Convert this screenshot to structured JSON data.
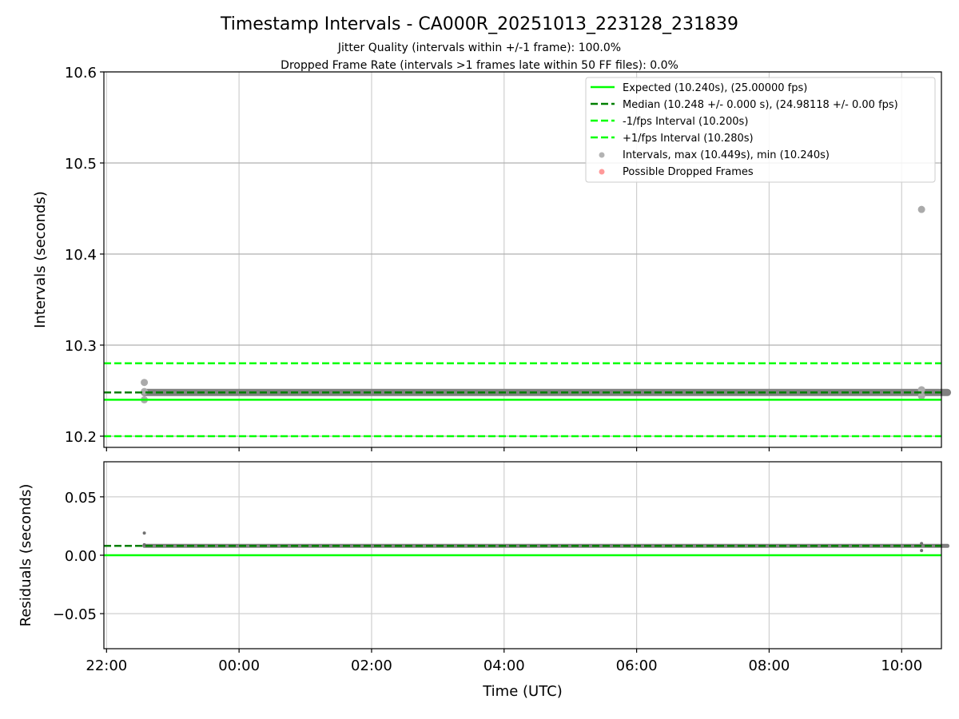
{
  "chart_data": [
    {
      "type": "scatter",
      "title": "Timestamp Intervals - CA000R_20251013_223128_231839",
      "subtitle_lines": [
        "Jitter Quality (intervals within +/-1 frame): 100.0%",
        "Dropped Frame Rate (intervals >1 frames late within 50 FF files): 0.0%"
      ],
      "ylabel": "Intervals (seconds)",
      "ylim": [
        10.1877,
        10.6
      ],
      "yticks": [
        10.2,
        10.3,
        10.4,
        10.5,
        10.6
      ],
      "ytick_labels": [
        "10.2",
        "10.3",
        "10.4",
        "10.5",
        "10.6"
      ],
      "grid": true,
      "hlines": [
        {
          "name": "Expected (10.240s), (25.00000 fps)",
          "y": 10.24,
          "color": "#00ff00",
          "style": "solid"
        },
        {
          "name": "Median (10.248 +/- 0.000 s), (24.98118 +/- 0.00 fps)",
          "y": 10.248,
          "color": "#007f00",
          "style": "dashed"
        },
        {
          "name": "-1/fps Interval (10.200s)",
          "y": 10.2,
          "color": "#00ff00",
          "style": "dashed"
        },
        {
          "name": "+1/fps Interval (10.280s)",
          "y": 10.28,
          "color": "#00ff00",
          "style": "dashed"
        }
      ],
      "scatter_series": [
        {
          "name": "Intervals, max (10.449s), min (10.240s)",
          "color": "#808080",
          "band": {
            "x_start_h": 22.57,
            "x_end_h": 34.45,
            "y": 10.248
          },
          "outliers": [
            [
              22.57,
              10.259
            ],
            [
              22.57,
              10.24
            ],
            [
              22.57,
              10.249
            ],
            [
              34.3,
              10.449
            ],
            [
              34.3,
              10.251
            ],
            [
              34.3,
              10.244
            ]
          ]
        },
        {
          "name": "Possible Dropped Frames",
          "color": "#ff5555",
          "points": []
        }
      ],
      "legend": "top-right"
    },
    {
      "type": "scatter",
      "ylabel": "Residuals (seconds)",
      "xlabel": "Time (UTC)",
      "ylim": [
        -0.08,
        0.08
      ],
      "yticks": [
        -0.05,
        0.0,
        0.05
      ],
      "ytick_labels": [
        "−0.05",
        "0.00",
        "0.05"
      ],
      "xlim_h": [
        21.96,
        34.6
      ],
      "xticks_h": [
        22,
        24,
        26,
        28,
        30,
        32,
        34
      ],
      "xtick_labels": [
        "22:00",
        "00:00",
        "02:00",
        "04:00",
        "06:00",
        "08:00",
        "10:00"
      ],
      "hlines": [
        {
          "y": 0.0,
          "color": "#00ff00",
          "style": "solid"
        },
        {
          "y": 0.008,
          "color": "#007f00",
          "style": "dashed"
        }
      ],
      "band": {
        "x_start_h": 22.57,
        "x_end_h": 34.45,
        "y": 0.008
      },
      "outliers": [
        [
          22.57,
          0.019
        ],
        [
          22.57,
          0.009
        ],
        [
          34.3,
          0.01
        ],
        [
          34.3,
          0.004
        ]
      ]
    }
  ]
}
